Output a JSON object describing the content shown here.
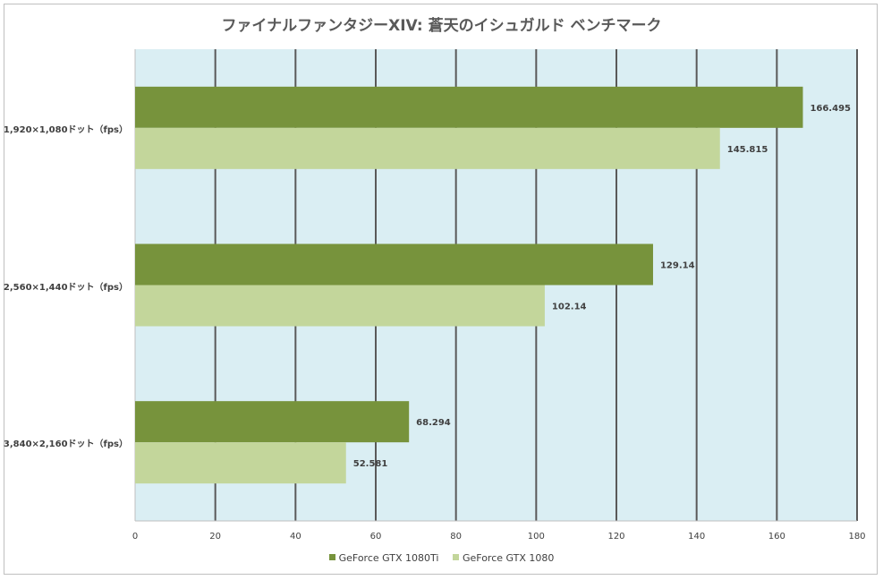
{
  "chart_data": {
    "type": "bar",
    "orientation": "horizontal",
    "title": "ファイナルファンタジーXIV: 蒼天のイシュガルド ベンチマーク",
    "categories": [
      "1,920×1,080ドット（fps）",
      "2,560×1,440ドット（fps）",
      "3,840×2,160ドット（fps）"
    ],
    "series": [
      {
        "name": "GeForce GTX 1080Ti",
        "color": "#77933c",
        "values": [
          166.495,
          129.14,
          68.294
        ],
        "labels": [
          "166.495",
          "129.14",
          "68.294"
        ]
      },
      {
        "name": "GeForce GTX 1080",
        "color": "#c3d69b",
        "values": [
          145.815,
          102.14,
          52.581
        ],
        "labels": [
          "145.815",
          "102.14",
          "52.581"
        ]
      }
    ],
    "xlim": [
      0,
      180
    ],
    "xticks": [
      0,
      20,
      40,
      60,
      80,
      100,
      120,
      140,
      160,
      180
    ],
    "xtick_labels": [
      "0",
      "20",
      "40",
      "60",
      "80",
      "100",
      "120",
      "140",
      "160",
      "180"
    ],
    "grid": true,
    "plot_background": "#daeef3",
    "gridline_color": "#595959",
    "legend_position": "bottom"
  }
}
